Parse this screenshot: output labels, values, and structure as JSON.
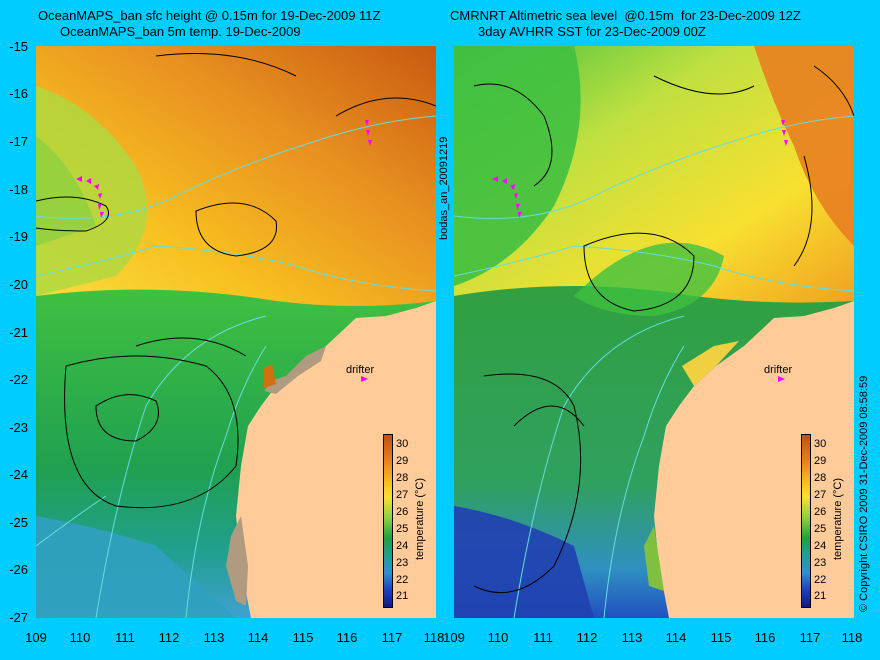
{
  "left_panel": {
    "title_line1": "OceanMAPS_ban sfc height @ 0.15m for 19-Dec-2009 11Z",
    "title_line2": "OceanMAPS_ban 5m temp. 19-Dec-2009",
    "drifter_label": "drifter",
    "colorbar_label": "temperature (°C)"
  },
  "right_panel": {
    "title_line1": "CMRNRT Altimetric sea level  @0.15m  for 23-Dec-2009 12Z",
    "title_line2": "3day AVHRR SST for 23-Dec-2009 00Z",
    "drifter_label": "drifter",
    "colorbar_label": "temperature (°C)"
  },
  "center_label": "bodas_an_20091219",
  "copyright": "© Copyright CSIRO 2009   31-Dec-2009 08:58:59",
  "y_ticks": [
    "-15",
    "-16",
    "-17",
    "-18",
    "-19",
    "-20",
    "-21",
    "-22",
    "-23",
    "-24",
    "-25",
    "-26",
    "-27"
  ],
  "x_ticks": [
    "109",
    "110",
    "111",
    "112",
    "113",
    "114",
    "115",
    "116",
    "117",
    "118"
  ],
  "colorbar_ticks": [
    "30",
    "29",
    "28",
    "27",
    "26",
    "25",
    "24",
    "23",
    "22",
    "21"
  ],
  "colors": {
    "background": "#00ccff",
    "land": "#ffcc99",
    "drifter_marker": "#ff00ff",
    "contour": "#000000",
    "isobath": "#66dddd"
  }
}
